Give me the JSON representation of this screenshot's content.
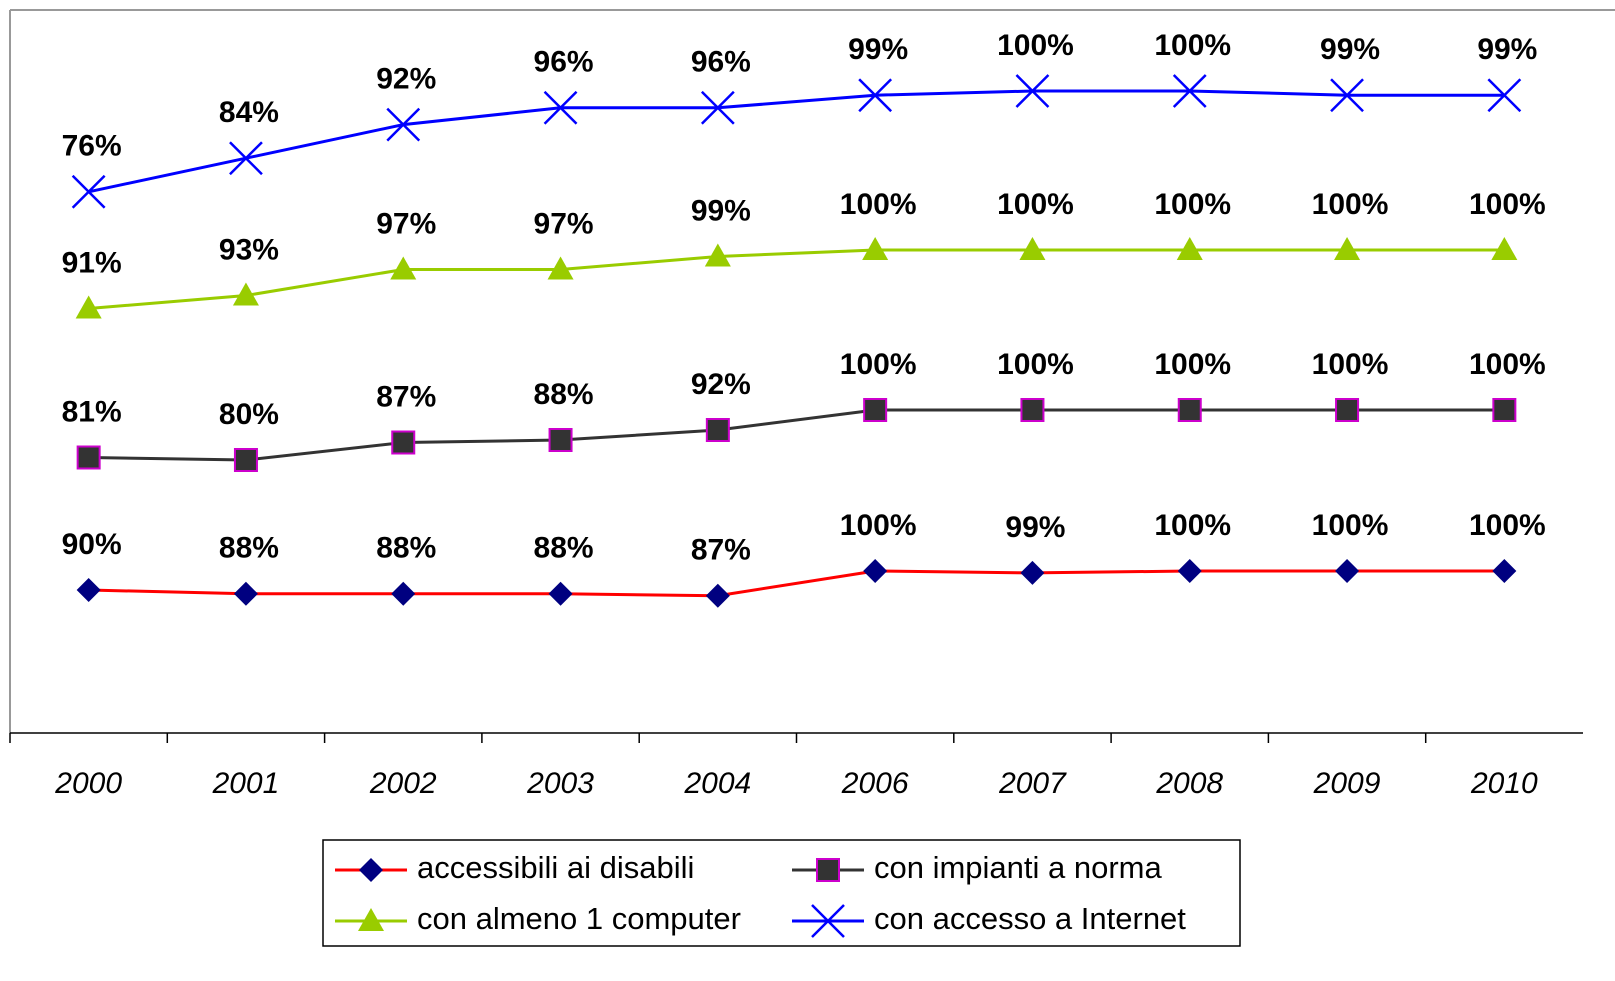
{
  "chart_data": {
    "type": "line",
    "categories": [
      "2000",
      "2001",
      "2002",
      "2003",
      "2004",
      "2006",
      "2007",
      "2008",
      "2009",
      "2010"
    ],
    "series": [
      {
        "name": "accessibili ai disabili",
        "color": "#ff0000",
        "marker": "diamond",
        "marker_color": "#000080",
        "values": [
          90,
          88,
          88,
          88,
          87,
          100,
          99,
          100,
          100,
          100
        ],
        "value_labels": [
          "90%",
          "88%",
          "88%",
          "88%",
          "87%",
          "100%",
          "99%",
          "100%",
          "100%",
          "100%"
        ]
      },
      {
        "name": "con impianti a norma",
        "color": "#333333",
        "marker": "square",
        "marker_color": "#333333",
        "values": [
          81,
          80,
          87,
          88,
          92,
          100,
          100,
          100,
          100,
          100
        ],
        "value_labels": [
          "81%",
          "80%",
          "87%",
          "88%",
          "92%",
          "100%",
          "100%",
          "100%",
          "100%",
          "100%"
        ]
      },
      {
        "name": "con almeno 1 computer",
        "color": "#99cc00",
        "marker": "triangle",
        "marker_color": "#99cc00",
        "values": [
          91,
          93,
          97,
          97,
          99,
          100,
          100,
          100,
          100,
          100
        ],
        "value_labels": [
          "91%",
          "93%",
          "97%",
          "97%",
          "99%",
          "100%",
          "100%",
          "100%",
          "100%",
          "100%"
        ]
      },
      {
        "name": "con accesso a Internet",
        "color": "#0000ff",
        "marker": "x",
        "marker_color": "#0000ff",
        "values": [
          76,
          84,
          92,
          96,
          96,
          99,
          100,
          100,
          99,
          99
        ],
        "value_labels": [
          "76%",
          "84%",
          "92%",
          "96%",
          "96%",
          "99%",
          "100%",
          "100%",
          "99%",
          "99%"
        ]
      }
    ],
    "legend": "bottom"
  }
}
